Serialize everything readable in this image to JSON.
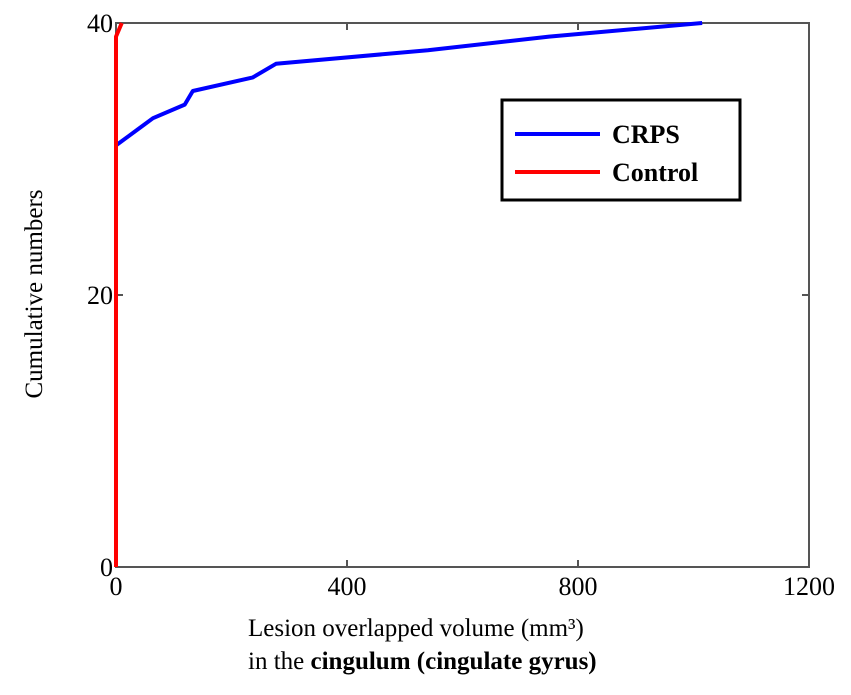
{
  "chart_data": {
    "type": "line",
    "xlabel_line1": "Lesion overlapped volume (mm³)",
    "xlabel_line2_prefix": "in the ",
    "xlabel_line2_bold": "cingulum (cingulate gyrus)",
    "ylabel": "Cumulative numbers",
    "xlim": [
      0,
      1200
    ],
    "ylim": [
      0,
      40
    ],
    "xticks": [
      "0",
      "400",
      "800",
      "1200"
    ],
    "yticks": [
      "0",
      "20",
      "40"
    ],
    "legend_position": "upper-right",
    "series": [
      {
        "name": "CRPS",
        "color": "#0000ff",
        "x": [
          0,
          64,
          119,
          133,
          237,
          277,
          540,
          750,
          1015
        ],
        "y": [
          31,
          33,
          34,
          35,
          36,
          37,
          38,
          39,
          40
        ]
      },
      {
        "name": "Control",
        "color": "#ff0000",
        "x": [
          0,
          0,
          10
        ],
        "y": [
          0,
          39,
          40
        ]
      }
    ]
  }
}
